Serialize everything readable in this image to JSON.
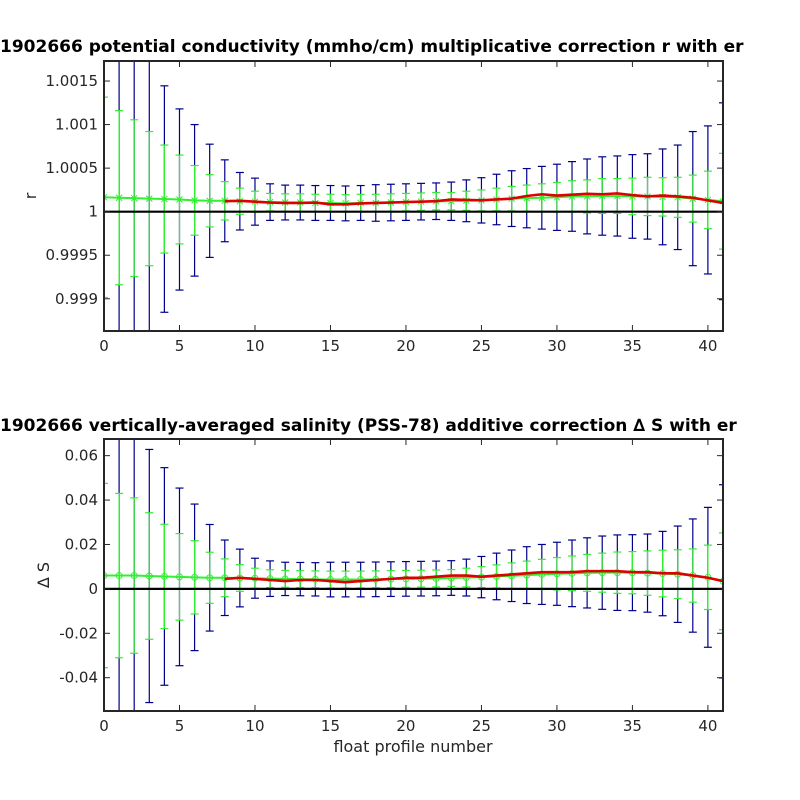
{
  "chart_data": [
    {
      "type": "line",
      "title": "1902666 potential conductivity (mmho/cm) multiplicative correction r with er",
      "xlabel": "",
      "ylabel": "r",
      "xlim": [
        0,
        41
      ],
      "ylim": [
        0.99863,
        1.00173
      ],
      "reference_line": 1.0,
      "x_ticks": [
        0,
        5,
        10,
        15,
        20,
        25,
        30,
        35,
        40
      ],
      "x_tick_labels": [
        "0",
        "5",
        "10",
        "15",
        "20",
        "25",
        "30",
        "35",
        "40"
      ],
      "y_ticks": [
        0.999,
        0.9995,
        1.0,
        1.0005,
        1.001,
        1.0015
      ],
      "y_tick_labels": [
        "0.999",
        "0.9995",
        "1",
        "1.0005",
        "1.001",
        "1.0015"
      ],
      "grid": false,
      "colors": {
        "blue": "#00008b",
        "green": "#33ee33",
        "red": "#dd0000",
        "ref": "#000000"
      },
      "series": [
        {
          "style": "blue-errorbars",
          "x": [
            0,
            1,
            2,
            3,
            4,
            5,
            6,
            7,
            8,
            9,
            10,
            11,
            12,
            13,
            14,
            15,
            16,
            17,
            18,
            19,
            20,
            21,
            22,
            23,
            24,
            25,
            26,
            27,
            28,
            29,
            30,
            31,
            32,
            33,
            34,
            35,
            36,
            37,
            38,
            39,
            40,
            41
          ],
          "center": [
            1.000165,
            1.00016,
            1.000155,
            1.00015,
            1.000145,
            1.00014,
            1.00013,
            1.000125,
            1.000125,
            1.00012,
            1.000115,
            1.00011,
            1.000105,
            1.000105,
            1.0001,
            1.0001,
            1.000095,
            1.0001,
            1.0001,
            1.000105,
            1.00011,
            1.000115,
            1.00012,
            1.00012,
            1.000125,
            1.00013,
            1.00014,
            1.00015,
            1.000155,
            1.00016,
            1.000165,
            1.000175,
            1.000175,
            1.00018,
            1.00018,
            1.000175,
            1.000175,
            1.00017,
            1.000165,
            1.00015,
            1.000135,
            1.00012
          ],
          "err": [
            0.0017,
            0.00185,
            0.0018,
            0.00175,
            0.0013,
            0.00104,
            0.00087,
            0.00065,
            0.00047,
            0.00033,
            0.00027,
            0.00021,
            0.0002,
            0.0002,
            0.0002,
            0.0002,
            0.0002,
            0.0002,
            0.00021,
            0.00021,
            0.00021,
            0.00021,
            0.00021,
            0.00022,
            0.00024,
            0.00026,
            0.00029,
            0.00032,
            0.00034,
            0.00036,
            0.00038,
            0.0004,
            0.00043,
            0.00045,
            0.00046,
            0.00048,
            0.00049,
            0.00055,
            0.0006,
            0.00077,
            0.00085,
            0.00113
          ]
        },
        {
          "style": "green-errorbars",
          "x": [
            0,
            1,
            2,
            3,
            4,
            5,
            6,
            7,
            8,
            9,
            10,
            11,
            12,
            13,
            14,
            15,
            16,
            17,
            18,
            19,
            20,
            21,
            22,
            23,
            24,
            25,
            26,
            27,
            28,
            29,
            30,
            31,
            32,
            33,
            34,
            35,
            36,
            37,
            38,
            39,
            40,
            41
          ],
          "center": [
            1.000165,
            1.00016,
            1.000155,
            1.00015,
            1.000145,
            1.00014,
            1.00013,
            1.000125,
            1.000125,
            1.00012,
            1.000115,
            1.00011,
            1.000105,
            1.000105,
            1.0001,
            1.0001,
            1.000095,
            1.0001,
            1.0001,
            1.000105,
            1.00011,
            1.000115,
            1.00012,
            1.00012,
            1.000125,
            1.00013,
            1.00014,
            1.00015,
            1.000155,
            1.00016,
            1.000165,
            1.000175,
            1.000175,
            1.00018,
            1.00018,
            1.000175,
            1.000175,
            1.00017,
            1.000165,
            1.00015,
            1.000135,
            1.00012
          ],
          "err": [
            0.00115,
            0.001,
            0.0009,
            0.00077,
            0.00062,
            0.00051,
            0.0004,
            0.0003,
            0.00022,
            0.00015,
            0.00012,
            0.0001,
            0.0001,
            0.0001,
            0.0001,
            0.0001,
            0.0001,
            0.0001,
            0.0001,
            0.0001,
            0.0001,
            0.0001,
            0.0001,
            0.0001,
            0.00011,
            0.00012,
            0.00013,
            0.00014,
            0.00015,
            0.00016,
            0.00017,
            0.00018,
            0.00019,
            0.0002,
            0.0002,
            0.00021,
            0.00022,
            0.00022,
            0.00023,
            0.00027,
            0.00033,
            0.00055
          ]
        },
        {
          "style": "green-line",
          "x": [
            0,
            1,
            2,
            3,
            4,
            5,
            6,
            7,
            8,
            9,
            10,
            11,
            12,
            13,
            14,
            15,
            16,
            17,
            18,
            19,
            20,
            21,
            22,
            23,
            24,
            25,
            26,
            27,
            28,
            29,
            30,
            31,
            32,
            33,
            34,
            35,
            36,
            37,
            38,
            39,
            40,
            41
          ],
          "y": [
            1.000165,
            1.00016,
            1.000155,
            1.00015,
            1.000145,
            1.00014,
            1.00013,
            1.000125,
            1.000125,
            1.00012,
            1.000115,
            1.00011,
            1.000105,
            1.000105,
            1.0001,
            1.0001,
            1.000095,
            1.0001,
            1.0001,
            1.000105,
            1.00011,
            1.000115,
            1.00012,
            1.00012,
            1.000125,
            1.00013,
            1.00014,
            1.00015,
            1.000155,
            1.00016,
            1.000165,
            1.000175,
            1.000175,
            1.00018,
            1.00018,
            1.000175,
            1.000175,
            1.00017,
            1.000165,
            1.00015,
            1.000135,
            1.00012
          ]
        },
        {
          "style": "red-line",
          "x": [
            8,
            9,
            10,
            11,
            12,
            13,
            14,
            15,
            16,
            17,
            18,
            19,
            20,
            21,
            22,
            23,
            24,
            25,
            26,
            27,
            28,
            29,
            30,
            31,
            32,
            33,
            34,
            35,
            36,
            37,
            38,
            39,
            40,
            41
          ],
          "y": [
            1.00012,
            1.000125,
            1.000115,
            1.000105,
            1.0001,
            1.0001,
            1.000105,
            1.000085,
            1.000085,
            1.000095,
            1.0001,
            1.000105,
            1.00011,
            1.000115,
            1.00012,
            1.00014,
            1.000135,
            1.00013,
            1.00014,
            1.00015,
            1.00018,
            1.0002,
            1.000185,
            1.000195,
            1.000205,
            1.0002,
            1.00021,
            1.00019,
            1.000175,
            1.000185,
            1.000175,
            1.00016,
            1.00013,
            1.0001
          ]
        }
      ]
    },
    {
      "type": "line",
      "title": "1902666 vertically-averaged salinity (PSS-78) additive correction ∆ S with er",
      "xlabel": "float profile number",
      "ylabel": "∆ S",
      "xlim": [
        0,
        41
      ],
      "ylim": [
        -0.055,
        0.0675
      ],
      "reference_line": 0.0,
      "x_ticks": [
        0,
        5,
        10,
        15,
        20,
        25,
        30,
        35,
        40
      ],
      "x_tick_labels": [
        "0",
        "5",
        "10",
        "15",
        "20",
        "25",
        "30",
        "35",
        "40"
      ],
      "y_ticks": [
        -0.04,
        -0.02,
        0.0,
        0.02,
        0.04,
        0.06
      ],
      "y_tick_labels": [
        "-0.04",
        "-0.02",
        "0",
        "0.02",
        "0.04",
        "0.06"
      ],
      "grid": false,
      "colors": {
        "blue": "#00008b",
        "green": "#33ee33",
        "red": "#dd0000",
        "ref": "#000000"
      },
      "series": [
        {
          "style": "blue-errorbars",
          "x": [
            0,
            1,
            2,
            3,
            4,
            5,
            6,
            7,
            8,
            9,
            10,
            11,
            12,
            13,
            14,
            15,
            16,
            17,
            18,
            19,
            20,
            21,
            22,
            23,
            24,
            25,
            26,
            27,
            28,
            29,
            30,
            31,
            32,
            33,
            34,
            35,
            36,
            37,
            38,
            39,
            40,
            41
          ],
          "center": [
            0.006,
            0.006,
            0.006,
            0.0058,
            0.0056,
            0.0054,
            0.0052,
            0.005,
            0.005,
            0.0049,
            0.0048,
            0.0046,
            0.0045,
            0.0044,
            0.0043,
            0.0042,
            0.0042,
            0.0042,
            0.0043,
            0.0044,
            0.0045,
            0.0046,
            0.0047,
            0.0049,
            0.0051,
            0.0053,
            0.0056,
            0.0059,
            0.0062,
            0.0065,
            0.0068,
            0.007,
            0.0072,
            0.0073,
            0.0073,
            0.0073,
            0.0071,
            0.0069,
            0.0066,
            0.006,
            0.0052,
            0.0034
          ],
          "err": [
            0.065,
            0.07,
            0.063,
            0.057,
            0.049,
            0.04,
            0.033,
            0.024,
            0.017,
            0.013,
            0.009,
            0.008,
            0.0075,
            0.0075,
            0.0075,
            0.0078,
            0.0078,
            0.0078,
            0.0078,
            0.0078,
            0.0078,
            0.0078,
            0.0078,
            0.0078,
            0.0083,
            0.0093,
            0.0105,
            0.0116,
            0.0128,
            0.0135,
            0.0142,
            0.015,
            0.0158,
            0.0165,
            0.017,
            0.0171,
            0.0176,
            0.019,
            0.0217,
            0.0255,
            0.0315,
            0.0435
          ]
        },
        {
          "style": "green-errorbars",
          "x": [
            0,
            1,
            2,
            3,
            4,
            5,
            6,
            7,
            8,
            9,
            10,
            11,
            12,
            13,
            14,
            15,
            16,
            17,
            18,
            19,
            20,
            21,
            22,
            23,
            24,
            25,
            26,
            27,
            28,
            29,
            30,
            31,
            32,
            33,
            34,
            35,
            36,
            37,
            38,
            39,
            40,
            41
          ],
          "center": [
            0.006,
            0.006,
            0.006,
            0.0058,
            0.0056,
            0.0054,
            0.0052,
            0.005,
            0.005,
            0.0049,
            0.0048,
            0.0046,
            0.0045,
            0.0044,
            0.0043,
            0.0042,
            0.0042,
            0.0042,
            0.0043,
            0.0044,
            0.0045,
            0.0046,
            0.0047,
            0.0049,
            0.0051,
            0.0053,
            0.0056,
            0.0059,
            0.0062,
            0.0065,
            0.0068,
            0.007,
            0.0072,
            0.0073,
            0.0073,
            0.0073,
            0.0071,
            0.0069,
            0.0066,
            0.006,
            0.0052,
            0.0034
          ],
          "err": [
            0.0415,
            0.037,
            0.035,
            0.0285,
            0.0235,
            0.0195,
            0.0165,
            0.0115,
            0.0085,
            0.006,
            0.0045,
            0.004,
            0.0038,
            0.0038,
            0.0038,
            0.0038,
            0.0038,
            0.0038,
            0.0038,
            0.0038,
            0.0038,
            0.0038,
            0.0038,
            0.0038,
            0.0042,
            0.0047,
            0.0052,
            0.0058,
            0.0063,
            0.0068,
            0.0073,
            0.0078,
            0.0083,
            0.0088,
            0.0093,
            0.0095,
            0.01,
            0.0105,
            0.011,
            0.012,
            0.0145,
            0.0218
          ]
        },
        {
          "style": "green-line",
          "x": [
            0,
            1,
            2,
            3,
            4,
            5,
            6,
            7,
            8,
            9,
            10,
            11,
            12,
            13,
            14,
            15,
            16,
            17,
            18,
            19,
            20,
            21,
            22,
            23,
            24,
            25,
            26,
            27,
            28,
            29,
            30,
            31,
            32,
            33,
            34,
            35,
            36,
            37,
            38,
            39,
            40,
            41
          ],
          "y": [
            0.006,
            0.006,
            0.006,
            0.0058,
            0.0056,
            0.0054,
            0.0052,
            0.005,
            0.005,
            0.0049,
            0.0048,
            0.0046,
            0.0045,
            0.0044,
            0.0043,
            0.0042,
            0.0042,
            0.0042,
            0.0043,
            0.0044,
            0.0045,
            0.0046,
            0.0047,
            0.0049,
            0.0051,
            0.0053,
            0.0056,
            0.0059,
            0.0062,
            0.0065,
            0.0068,
            0.007,
            0.0072,
            0.0073,
            0.0073,
            0.0073,
            0.0071,
            0.0069,
            0.0066,
            0.006,
            0.0052,
            0.0034
          ]
        },
        {
          "style": "red-line",
          "x": [
            8,
            9,
            10,
            11,
            12,
            13,
            14,
            15,
            16,
            17,
            18,
            19,
            20,
            21,
            22,
            23,
            24,
            25,
            26,
            27,
            28,
            29,
            30,
            31,
            32,
            33,
            34,
            35,
            36,
            37,
            38,
            39,
            40,
            41
          ],
          "y": [
            0.0045,
            0.005,
            0.0045,
            0.004,
            0.0035,
            0.004,
            0.004,
            0.0035,
            0.003,
            0.0035,
            0.004,
            0.0045,
            0.005,
            0.005,
            0.0055,
            0.006,
            0.006,
            0.0055,
            0.006,
            0.0065,
            0.007,
            0.0075,
            0.0075,
            0.0075,
            0.008,
            0.008,
            0.008,
            0.0075,
            0.0075,
            0.007,
            0.007,
            0.006,
            0.005,
            0.0035
          ]
        }
      ]
    }
  ]
}
